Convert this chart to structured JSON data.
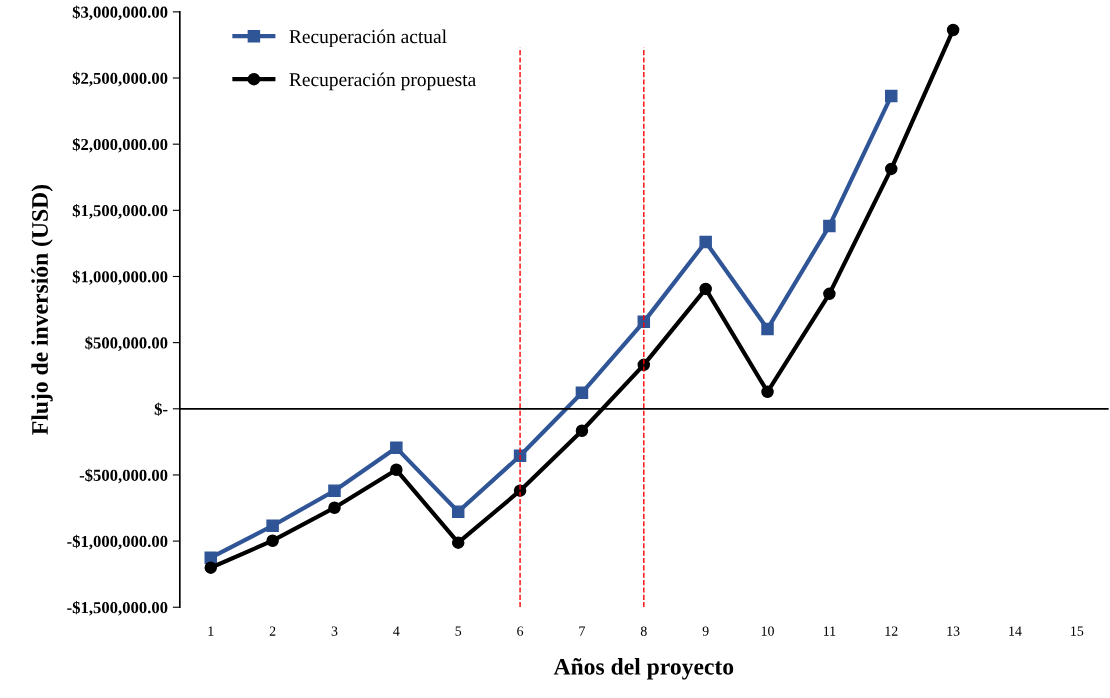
{
  "chart_data": {
    "type": "line",
    "xlabel": "Años del proyecto",
    "ylabel": "Flujo de inversión (USD)",
    "categories": [
      "1",
      "2",
      "3",
      "4",
      "5",
      "6",
      "7",
      "8",
      "9",
      "10",
      "11",
      "12",
      "13",
      "14",
      "15"
    ],
    "series": [
      {
        "name": "Recuperación actual",
        "color": "#2f5597",
        "marker": "square",
        "values": [
          -1125000,
          -884000,
          -619000,
          -295000,
          -778000,
          -355000,
          121000,
          657000,
          1261000,
          604000,
          1382000,
          2364000,
          null,
          null,
          null
        ]
      },
      {
        "name": "Recuperación propuesta",
        "color": "#000000",
        "marker": "circle",
        "values": [
          -1201000,
          -997000,
          -748000,
          -461000,
          -1012000,
          -619000,
          -166000,
          332000,
          906000,
          128000,
          869000,
          1813000,
          2863000,
          null,
          null
        ]
      }
    ],
    "ylim": [
      -1500000,
      3000000
    ],
    "yticks": [
      {
        "value": -1500000,
        "label": "-$1,500,000.00"
      },
      {
        "value": -1000000,
        "label": "-$1,000,000.00"
      },
      {
        "value": -500000,
        "label": "-$500,000.00"
      },
      {
        "value": 0,
        "label": "$-"
      },
      {
        "value": 500000,
        "label": "$500,000.00"
      },
      {
        "value": 1000000,
        "label": "$1,000,000.00"
      },
      {
        "value": 1500000,
        "label": "$1,500,000.00"
      },
      {
        "value": 2000000,
        "label": "$2,000,000.00"
      },
      {
        "value": 2500000,
        "label": "$2,500,000.00"
      },
      {
        "value": 3000000,
        "label": "$3,000,000.00"
      }
    ],
    "ref_lines": [
      {
        "axis": "x",
        "value": "6",
        "color": "#ff0000",
        "line_style": "dashed"
      },
      {
        "axis": "x",
        "value": "8",
        "color": "#ff0000",
        "line_style": "dashed"
      }
    ],
    "grid": false,
    "legend": "top left",
    "line_style": "solid"
  }
}
